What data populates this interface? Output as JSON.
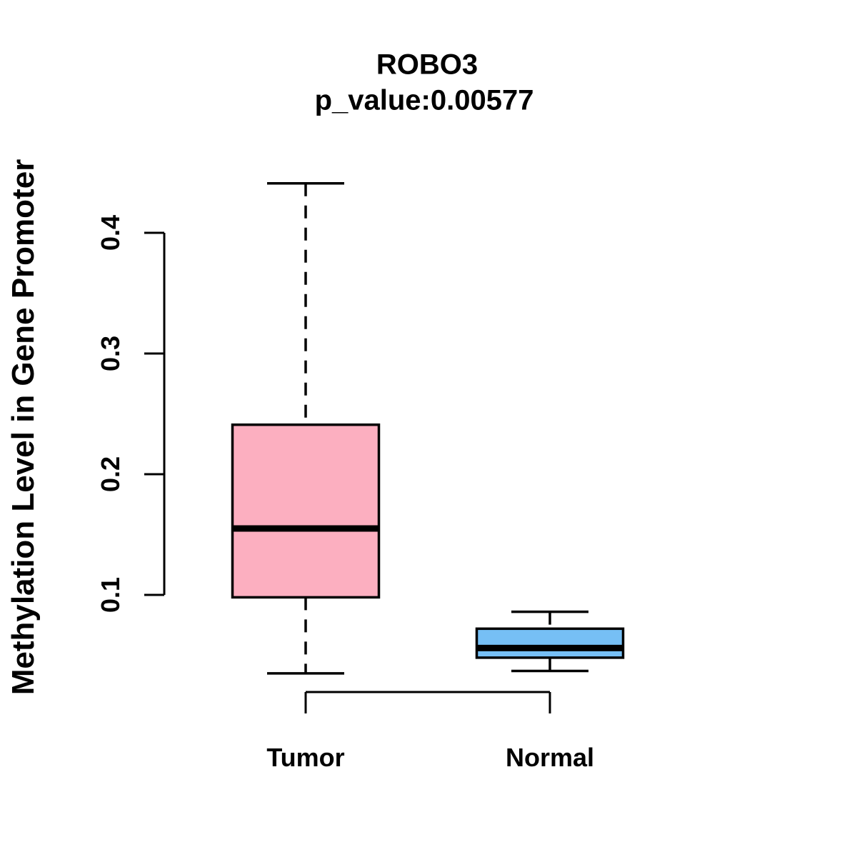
{
  "figure": {
    "background": "#ffffff"
  },
  "chart_data": {
    "type": "boxplot",
    "title": "ROBO3",
    "subtitle": "p_value:0.00577",
    "ylabel": "Methylation Level in Gene Promoter",
    "xlabel": "",
    "ylim": [
      0.03,
      0.45
    ],
    "grid": false,
    "whisker_style": "dashed",
    "y_ticks": [
      {
        "value": 0.1,
        "label": "0.1"
      },
      {
        "value": 0.2,
        "label": "0.2"
      },
      {
        "value": 0.3,
        "label": "0.3"
      },
      {
        "value": 0.4,
        "label": "0.4"
      }
    ],
    "groups": [
      {
        "label": "Tumor",
        "fill": "#FCAFC0",
        "stats": {
          "whisker_low": 0.035,
          "q1": 0.098,
          "median": 0.155,
          "q3": 0.241,
          "whisker_high": 0.441
        }
      },
      {
        "label": "Normal",
        "fill": "#76BFF5",
        "stats": {
          "whisker_low": 0.037,
          "q1": 0.048,
          "median": 0.056,
          "q3": 0.072,
          "whisker_high": 0.086
        }
      }
    ],
    "colors": {
      "stroke": "#000000",
      "text": "#000000"
    }
  }
}
